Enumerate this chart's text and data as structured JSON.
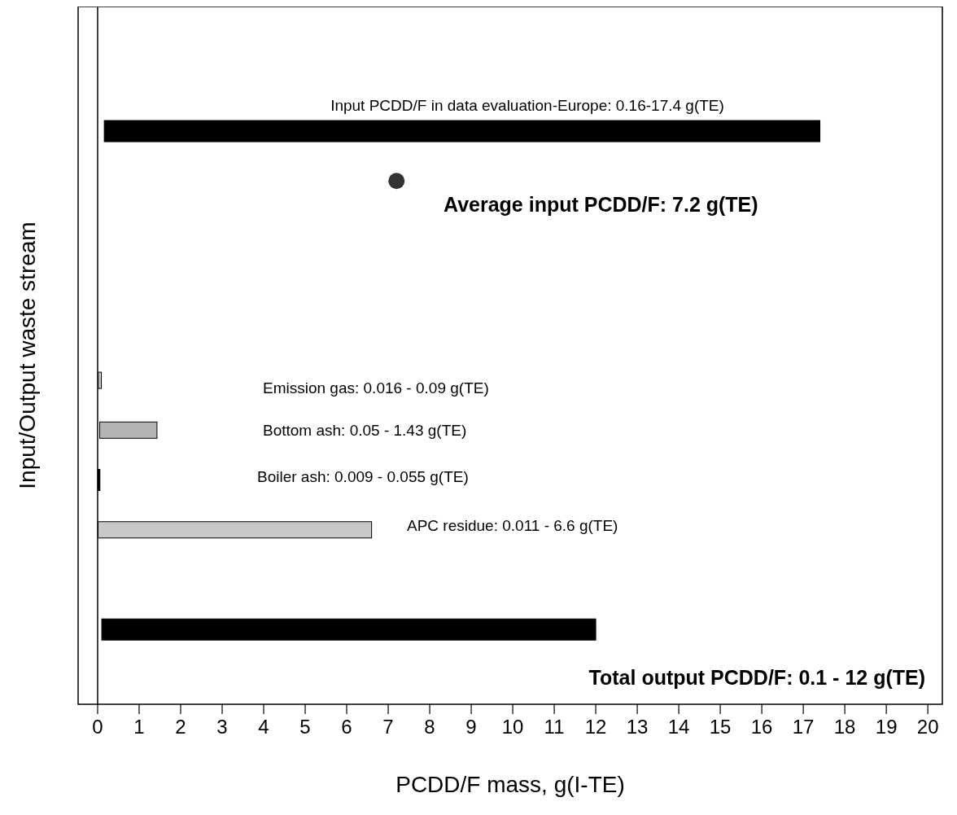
{
  "chart_data": {
    "type": "bar",
    "orientation": "horizontal",
    "xlabel": "PCDD/F mass, g(I-TE)",
    "ylabel": "Input/Output waste stream",
    "categories": [
      null,
      null,
      null,
      null,
      null,
      null,
      null,
      null,
      null,
      null,
      null,
      null,
      null,
      null
    ],
    "xlim": [
      -0.47,
      20.35
    ],
    "xticks": [
      0,
      1,
      2,
      3,
      4,
      5,
      6,
      7,
      8,
      9,
      10,
      11,
      12,
      13,
      14,
      15,
      16,
      17,
      18,
      19,
      20
    ],
    "series": [
      {
        "base": [
          null,
          null,
          0.16,
          null,
          null,
          null,
          null,
          0.016,
          0.05,
          0.009,
          0.011,
          null,
          0.1,
          null
        ],
        "values": [
          null,
          null,
          17.24,
          null,
          null,
          null,
          null,
          0.074,
          1.38,
          0.046,
          6.589,
          null,
          11.9,
          null
        ],
        "colors": [
          null,
          null,
          "#000000",
          null,
          null,
          null,
          null,
          "#c8c8c8",
          "#b4b4b4",
          "#000000",
          "#c8c8c8",
          null,
          "#000000",
          null
        ]
      },
      {
        "type": "scatter",
        "marker": "circle",
        "color": "#333333",
        "values": [
          null,
          null,
          null,
          7.2,
          null,
          null,
          null,
          null,
          null,
          null,
          null,
          null,
          null,
          null
        ]
      }
    ],
    "annotations": [
      "Input PCDD/F in data evaluation-Europe: 0.16-17.4 g(TE)",
      "Average input PCDD/F: 7.2 g(TE)",
      "Emission gas: 0.016 - 0.09 g(TE)",
      "Bottom ash: 0.05 - 1.43 g(TE)",
      "Boiler ash: 0.009 - 0.055 g(TE)",
      "APC residue: 0.011 - 6.6 g(TE)",
      "Total output PCDD/F: 0.1 - 12 g(TE)"
    ]
  }
}
